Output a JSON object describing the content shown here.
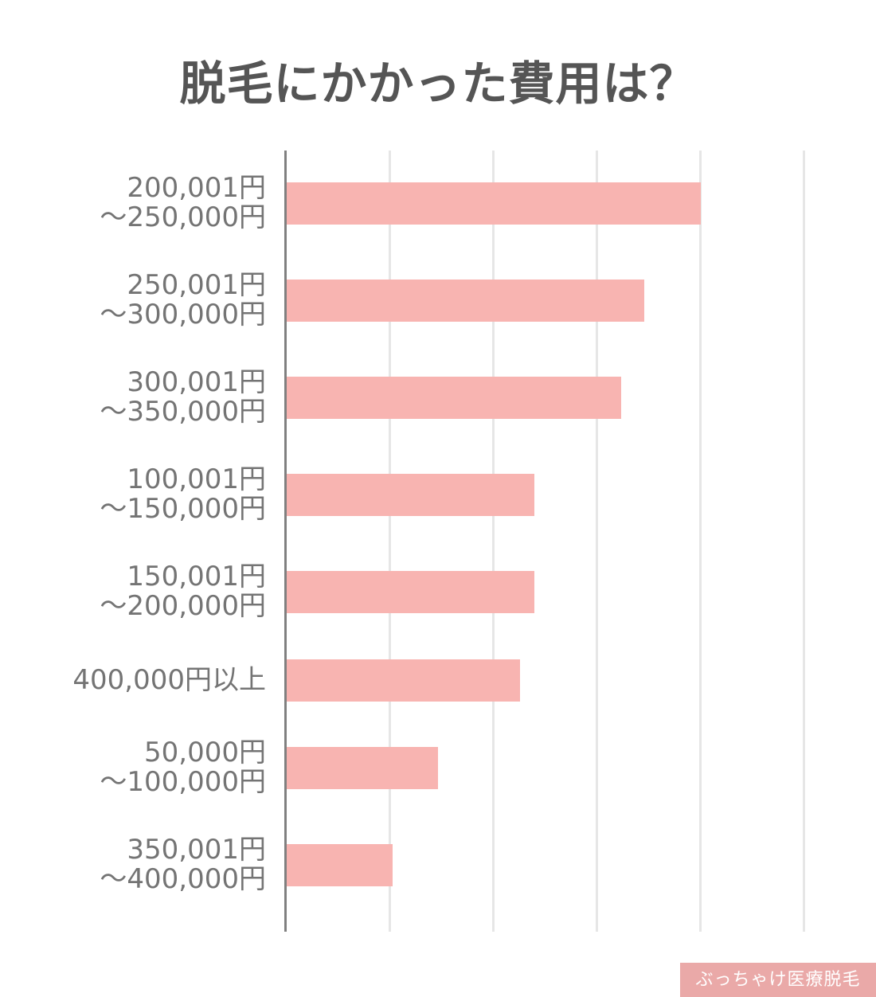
{
  "title": "脱毛にかかった費用は？",
  "watermark": "ぶっちゃけ医療脱毛",
  "colors": {
    "bar": "#f8b4b1",
    "title": "#555555",
    "label": "#747474",
    "axis": "#808080",
    "grid": "#e6e6e6",
    "badge": "#eaa9a8"
  },
  "chart_data": {
    "type": "bar",
    "orientation": "horizontal",
    "title": "脱毛にかかった費用は？",
    "xlabel": "",
    "ylabel": "",
    "xlim": [
      0,
      5
    ],
    "grid": true,
    "legend": null,
    "categories": [
      "200,001円～250,000円",
      "250,001円～300,000円",
      "300,001円～350,000円",
      "100,001円～150,000円",
      "150,001円～200,000円",
      "400,000円以上",
      "50,000円～100,000円",
      "350,001円～400,000円"
    ],
    "values": [
      4.0,
      3.45,
      3.23,
      2.39,
      2.39,
      2.25,
      1.46,
      1.02
    ],
    "note": "No tick labels shown; values in gridline units (5 gridlines)"
  },
  "labels": [
    {
      "line1": "200,001円",
      "line2": "～250,000円"
    },
    {
      "line1": "250,001円",
      "line2": "～300,000円"
    },
    {
      "line1": "300,001円",
      "line2": "～350,000円"
    },
    {
      "line1": "100,001円",
      "line2": "～150,000円"
    },
    {
      "line1": "150,001円",
      "line2": "～200,000円"
    },
    {
      "line1": "400,000円以上",
      "line2": ""
    },
    {
      "line1": "50,000円",
      "line2": "～100,000円"
    },
    {
      "line1": "350,001円",
      "line2": "～400,000円"
    }
  ]
}
